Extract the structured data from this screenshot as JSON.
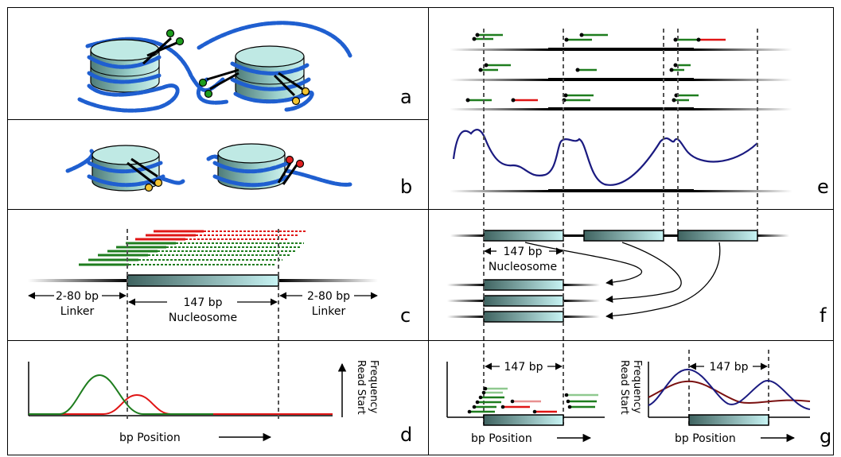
{
  "panels": {
    "a": "a",
    "b": "b",
    "c": "c",
    "d": "d",
    "e": "e",
    "f": "f",
    "g": "g"
  },
  "c": {
    "linker_bp": "2-80 bp",
    "linker_word": "Linker",
    "nuc_bp": "147 bp",
    "nuc_word": "Nucleosome"
  },
  "d": {
    "ylabel_line1": "Read Start",
    "ylabel_line2": "Frequency",
    "xlabel": "bp Position"
  },
  "f": {
    "nuc_bp": "147 bp",
    "nuc_word": "Nucleosome"
  },
  "g": {
    "left_bp": "147 bp",
    "right_bp": "147 bp",
    "left_xlabel": "bp Position",
    "right_xlabel": "bp Position",
    "ylabel_line1": "Read Start",
    "ylabel_line2": "Frequency"
  },
  "colors": {
    "dna": "#1f5fd0",
    "fwd_read": "#1e7d1e",
    "rev_read": "#e01515",
    "profile": "#1a1a80",
    "profile2": "#7a1010",
    "nucleosome_dark": "#3f6360",
    "nucleosome_light": "#c8f4f4"
  }
}
